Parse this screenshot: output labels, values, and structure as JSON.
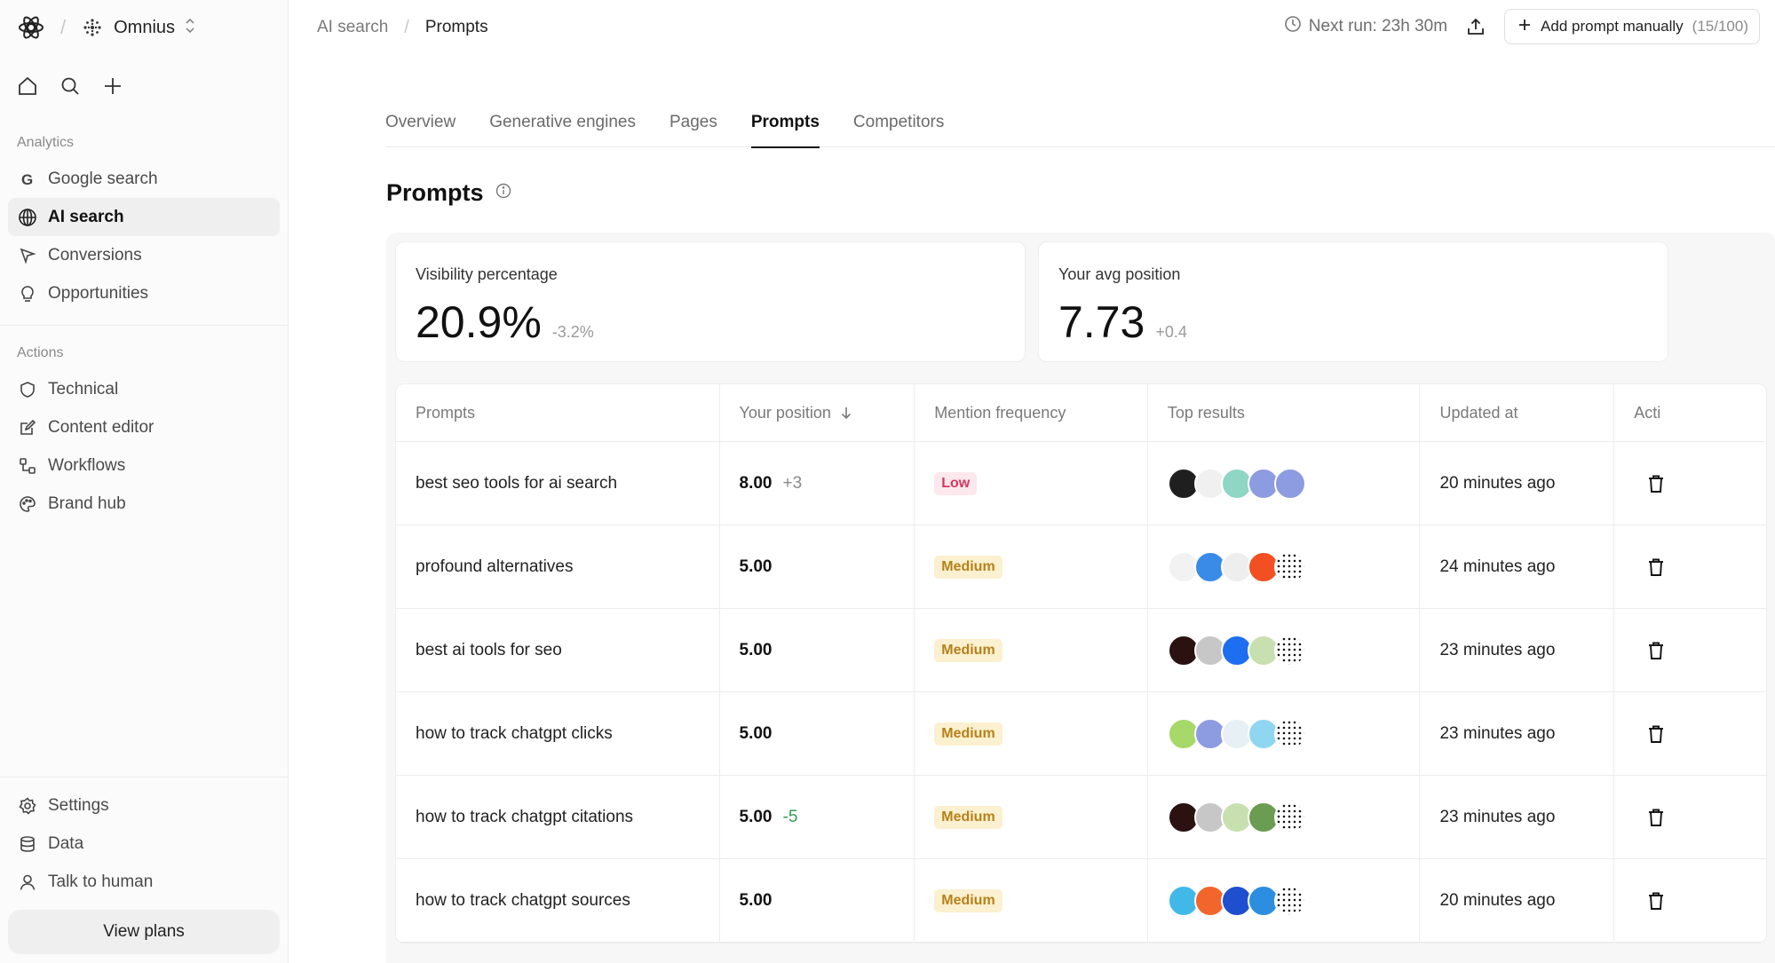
{
  "workspace": {
    "name": "Omnius"
  },
  "sidebar": {
    "sections": [
      {
        "title": "Analytics",
        "items": [
          {
            "label": "Google search",
            "icon": "google-icon"
          },
          {
            "label": "AI search",
            "icon": "ai-search-icon",
            "active": true
          },
          {
            "label": "Conversions",
            "icon": "cursor-icon"
          },
          {
            "label": "Opportunities",
            "icon": "lightbulb-icon"
          }
        ]
      },
      {
        "title": "Actions",
        "items": [
          {
            "label": "Technical",
            "icon": "shield-icon"
          },
          {
            "label": "Content editor",
            "icon": "edit-icon"
          },
          {
            "label": "Workflows",
            "icon": "workflow-icon"
          },
          {
            "label": "Brand hub",
            "icon": "palette-icon"
          }
        ]
      }
    ],
    "bottom": [
      {
        "label": "Settings",
        "icon": "gear-icon"
      },
      {
        "label": "Data",
        "icon": "database-icon"
      },
      {
        "label": "Talk to human",
        "icon": "user-icon"
      }
    ],
    "view_plans": "View plans"
  },
  "breadcrumb": {
    "parent": "AI search",
    "current": "Prompts"
  },
  "topbar": {
    "next_run": "Next run: 23h 30m",
    "add_label": "Add prompt manually",
    "add_count": "(15/100)"
  },
  "tabs": [
    {
      "label": "Overview"
    },
    {
      "label": "Generative engines"
    },
    {
      "label": "Pages"
    },
    {
      "label": "Prompts",
      "active": true
    },
    {
      "label": "Competitors"
    }
  ],
  "page_title": "Prompts",
  "stats": [
    {
      "label": "Visibility percentage",
      "value": "20.9%",
      "delta": "-3.2%"
    },
    {
      "label": "Your avg position",
      "value": "7.73",
      "delta": "+0.4"
    }
  ],
  "table": {
    "columns": [
      "Prompts",
      "Your position",
      "Mention frequency",
      "Top results",
      "Updated at",
      "Acti"
    ],
    "rows": [
      {
        "prompt": "best seo tools for ai search",
        "position": "8.00",
        "delta": "+3",
        "delta_color": "gray",
        "frequency": "Low",
        "favicons": [
          "#1f1f1f",
          "#f0f0f0",
          "#8fd6c4",
          "#8d9be0",
          "#8d9be0"
        ],
        "updated": "20 minutes ago"
      },
      {
        "prompt": "profound alternatives",
        "position": "5.00",
        "delta": "",
        "delta_color": "gray",
        "frequency": "Medium",
        "favicons": [
          "#f2f2f2",
          "#3a8be8",
          "#eeeeee",
          "#f25022",
          "#ffffff"
        ],
        "updated": "24 minutes ago"
      },
      {
        "prompt": "best ai tools for seo",
        "position": "5.00",
        "delta": "",
        "delta_color": "gray",
        "frequency": "Medium",
        "favicons": [
          "#2b1111",
          "#c7c7c7",
          "#1d6ef0",
          "#c8e0b0",
          "#ffffff"
        ],
        "updated": "23 minutes ago"
      },
      {
        "prompt": "how to track chatgpt clicks",
        "position": "5.00",
        "delta": "",
        "delta_color": "gray",
        "frequency": "Medium",
        "favicons": [
          "#a6d86a",
          "#8d9be0",
          "#e6f0f5",
          "#8fd6f0",
          "#ffffff"
        ],
        "updated": "23 minutes ago"
      },
      {
        "prompt": "how to track chatgpt citations",
        "position": "5.00",
        "delta": "-5",
        "delta_color": "green",
        "frequency": "Medium",
        "favicons": [
          "#2b1111",
          "#c7c7c7",
          "#c8e0b0",
          "#6a9c52",
          "#ffffff"
        ],
        "updated": "23 minutes ago"
      },
      {
        "prompt": "how to track chatgpt sources",
        "position": "5.00",
        "delta": "",
        "delta_color": "gray",
        "frequency": "Medium",
        "favicons": [
          "#41b9e8",
          "#f2662b",
          "#1f4fcf",
          "#2c8ee0",
          "#ffffff"
        ],
        "updated": "20 minutes ago"
      }
    ]
  }
}
